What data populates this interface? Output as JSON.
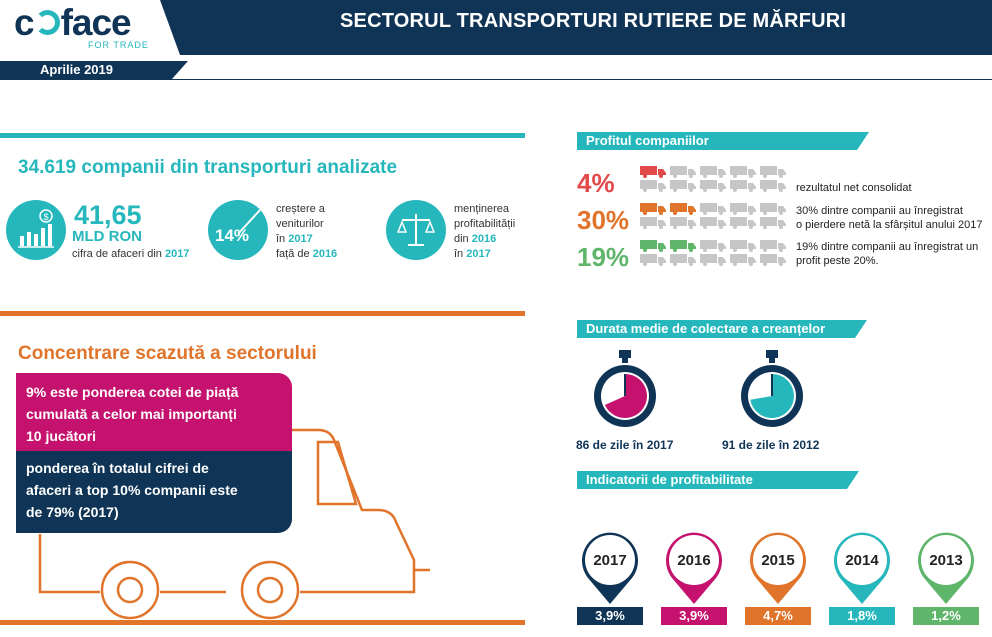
{
  "header": {
    "logo_text": "coface",
    "logo_sub": "FOR TRADE",
    "title": "SECTORUL TRANSPORTURI RUTIERE DE MĂRFURI",
    "date": "Aprilie 2019"
  },
  "companies": {
    "title": "34.619 companii din transporturi analizate",
    "turnover": {
      "value": "41,65",
      "unit": "MLD RON",
      "desc": "cifra de afaceri din",
      "year": "2017"
    },
    "growth": {
      "value": "14%",
      "line1": "creștere a",
      "line2": "veniturilor",
      "line3_pre": "în",
      "year1": "2017",
      "line4_pre": "față de",
      "year2": "2016"
    },
    "profit": {
      "line1": "menținerea",
      "line2": "profitabilității",
      "line3_pre": "din",
      "year1": "2016",
      "line4_pre": "în",
      "year2": "2017"
    }
  },
  "concentration": {
    "title": "Concentrare scazută a sectorului",
    "pink_text": [
      "9% este ponderea cotei de piață",
      "cumulată a celor mai importanți",
      "10 jucători"
    ],
    "dark_text": [
      "ponderea în totalul cifrei de",
      "afaceri a top 10% companii este",
      "de 79% (2017)"
    ]
  },
  "profit_section": {
    "title": "Profitul companiilor",
    "rows": [
      {
        "pct": "4%",
        "color": "#e24a4a",
        "highlight": 1,
        "text": [
          "rezultatul net consolidat"
        ]
      },
      {
        "pct": "30%",
        "color": "#e0742b",
        "highlight": 2,
        "text": [
          "30% dintre companii au înregistrat",
          "o pierdere netă la sfârșitul anului 2017"
        ]
      },
      {
        "pct": "19%",
        "color": "#5fb56a",
        "highlight": 2,
        "text": [
          "19% dintre companii au înregistrat un",
          "profit peste 20%."
        ]
      }
    ]
  },
  "collection": {
    "title": "Durata medie de colectare a creanțelor",
    "items": [
      {
        "caption": "86 de zile în 2017",
        "days": 86,
        "color": "#c4126e"
      },
      {
        "caption": "91 de zile în 2012",
        "days": 91,
        "color": "#26b7bc"
      }
    ]
  },
  "indicators": {
    "title": "Indicatorii de profitabilitate",
    "items": [
      {
        "year": "2017",
        "value": "3,9%",
        "color": "#0f3456"
      },
      {
        "year": "2016",
        "value": "3,9%",
        "color": "#c4126e"
      },
      {
        "year": "2015",
        "value": "4,7%",
        "color": "#e0742b"
      },
      {
        "year": "2014",
        "value": "1,8%",
        "color": "#26b7bc"
      },
      {
        "year": "2013",
        "value": "1,2%",
        "color": "#5fb56a"
      }
    ]
  }
}
